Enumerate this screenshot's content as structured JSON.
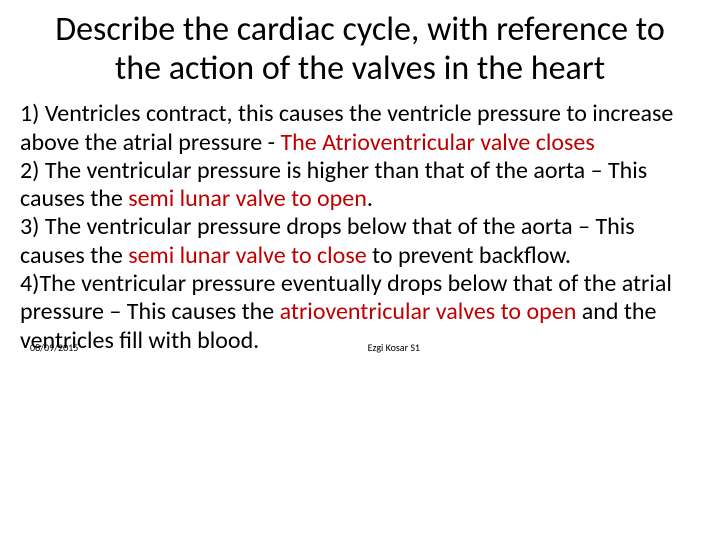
{
  "title": "Describe the cardiac cycle, with reference to the action of the valves in the heart",
  "steps": {
    "s1a": "1) Ventricles contract, this causes the ventricle pressure to increase above the atrial pressure - ",
    "s1b": "The Atrioventricular valve closes",
    "s2a": "2) The ventricular pressure is higher than that of the aorta – This causes the ",
    "s2b": "semi lunar valve to open",
    "s2c": ".",
    "s3a": "3) The ventricular pressure drops below that of the aorta – This causes the ",
    "s3b": "semi lunar valve to close ",
    "s3c": "to prevent backflow.",
    "s4a": "4)The ventricular pressure eventually drops below that of the atrial pressure – This causes the ",
    "s4b": "atrioventricular valves to open ",
    "s4c": "and the ventricles fill with blood."
  },
  "footer": {
    "date": "08/09/2015",
    "author": "Ezgi Kosar S1"
  },
  "colors": {
    "text": "#000000",
    "highlight": "#c00000",
    "background": "#ffffff"
  },
  "typography": {
    "title_fontsize": 34,
    "body_fontsize": 24,
    "footer_fontsize": 10,
    "font_family": "Calibri"
  }
}
